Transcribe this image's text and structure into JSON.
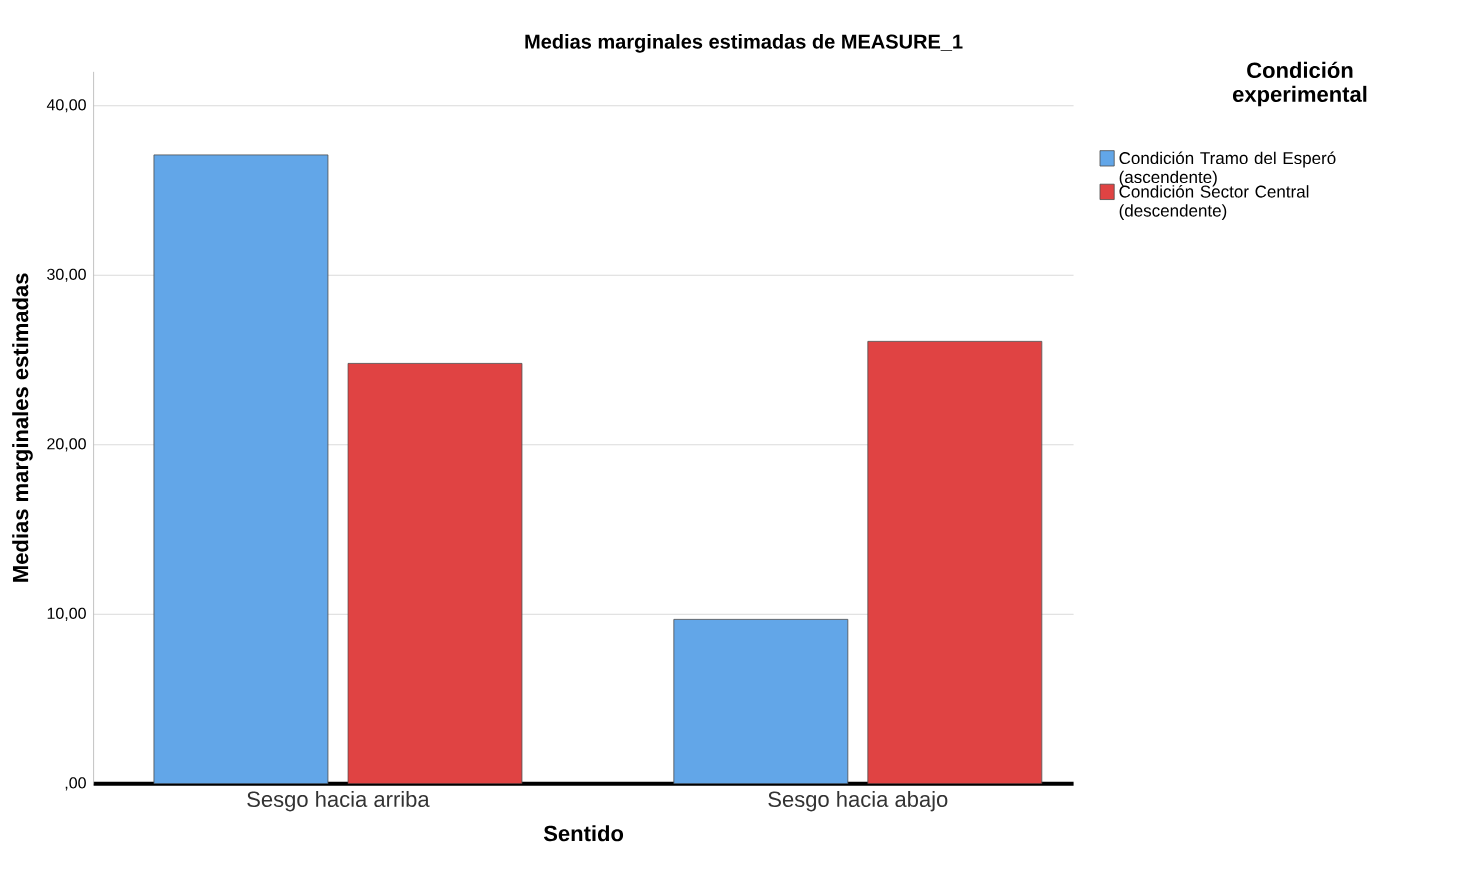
{
  "chart_data": {
    "type": "bar",
    "title": "Medias marginales estimadas de MEASURE_1",
    "xlabel": "Sentido",
    "ylabel": "Medias marginales estimadas",
    "legend_title": "Condición experimental",
    "categories": [
      "Sesgo hacia arriba",
      "Sesgo hacia abajo"
    ],
    "series": [
      {
        "name": "Condición Tramo del Esperó (ascendente)",
        "color": "#62a6e8",
        "values": [
          37.1,
          9.7
        ]
      },
      {
        "name": "Condición Sector Central (descendente)",
        "color": "#e04343",
        "values": [
          24.8,
          26.1
        ]
      }
    ],
    "ylim": [
      0,
      42
    ],
    "yticks": [
      {
        "value": 0,
        "label": ",00"
      },
      {
        "value": 10,
        "label": "10,00"
      },
      {
        "value": 20,
        "label": "20,00"
      },
      {
        "value": 30,
        "label": "30,00"
      },
      {
        "value": 40,
        "label": "40,00"
      }
    ],
    "grid": "y",
    "legend": "right"
  }
}
